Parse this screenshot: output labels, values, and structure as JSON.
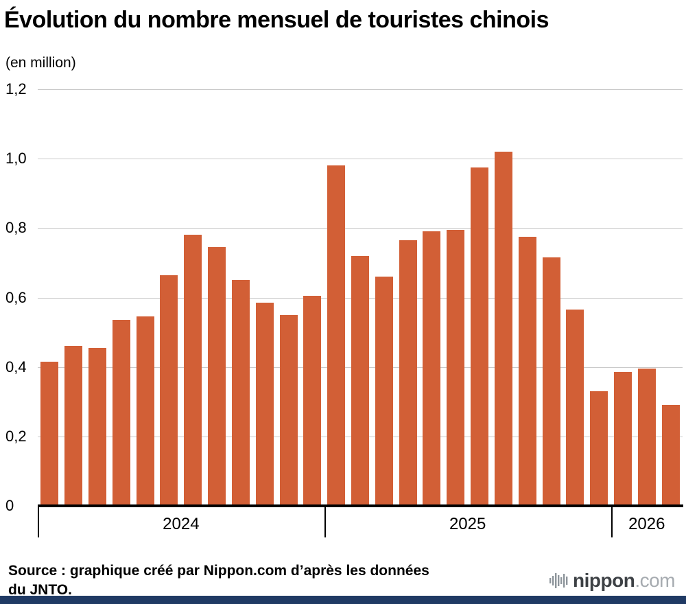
{
  "header": {
    "title": "Évolution du nombre mensuel de touristes chinois",
    "subtitle": "(en million)"
  },
  "chart_data": {
    "type": "bar",
    "title": "Évolution du nombre mensuel de touristes chinois",
    "unit_label": "(en million)",
    "bar_color": "#d25f36",
    "grid": true,
    "legend": "none",
    "ylim": [
      0,
      1.2
    ],
    "yticks": [
      {
        "value": 0,
        "label": "0"
      },
      {
        "value": 0.2,
        "label": "0,2"
      },
      {
        "value": 0.4,
        "label": "0,4"
      },
      {
        "value": 0.6,
        "label": "0,6"
      },
      {
        "value": 0.8,
        "label": "0,8"
      },
      {
        "value": 1.0,
        "label": "1,0"
      },
      {
        "value": 1.2,
        "label": "1,2"
      }
    ],
    "groups": [
      {
        "label": "2024",
        "values": [
          0.415,
          0.46,
          0.455,
          0.535,
          0.545,
          0.665,
          0.78,
          0.745,
          0.65,
          0.585,
          0.55,
          0.605
        ]
      },
      {
        "label": "2025",
        "values": [
          0.98,
          0.72,
          0.66,
          0.765,
          0.79,
          0.795,
          0.975,
          1.02,
          0.775,
          0.715,
          0.565,
          0.33
        ]
      },
      {
        "label": "2026",
        "values": [
          0.385,
          0.395,
          0.29
        ]
      }
    ]
  },
  "footer": {
    "source_line1": "Source : graphique créé par Nippon.com d’après les données",
    "source_line2": "du JNTO.",
    "logo_text": "nippon",
    "logo_suffix": ".com"
  }
}
